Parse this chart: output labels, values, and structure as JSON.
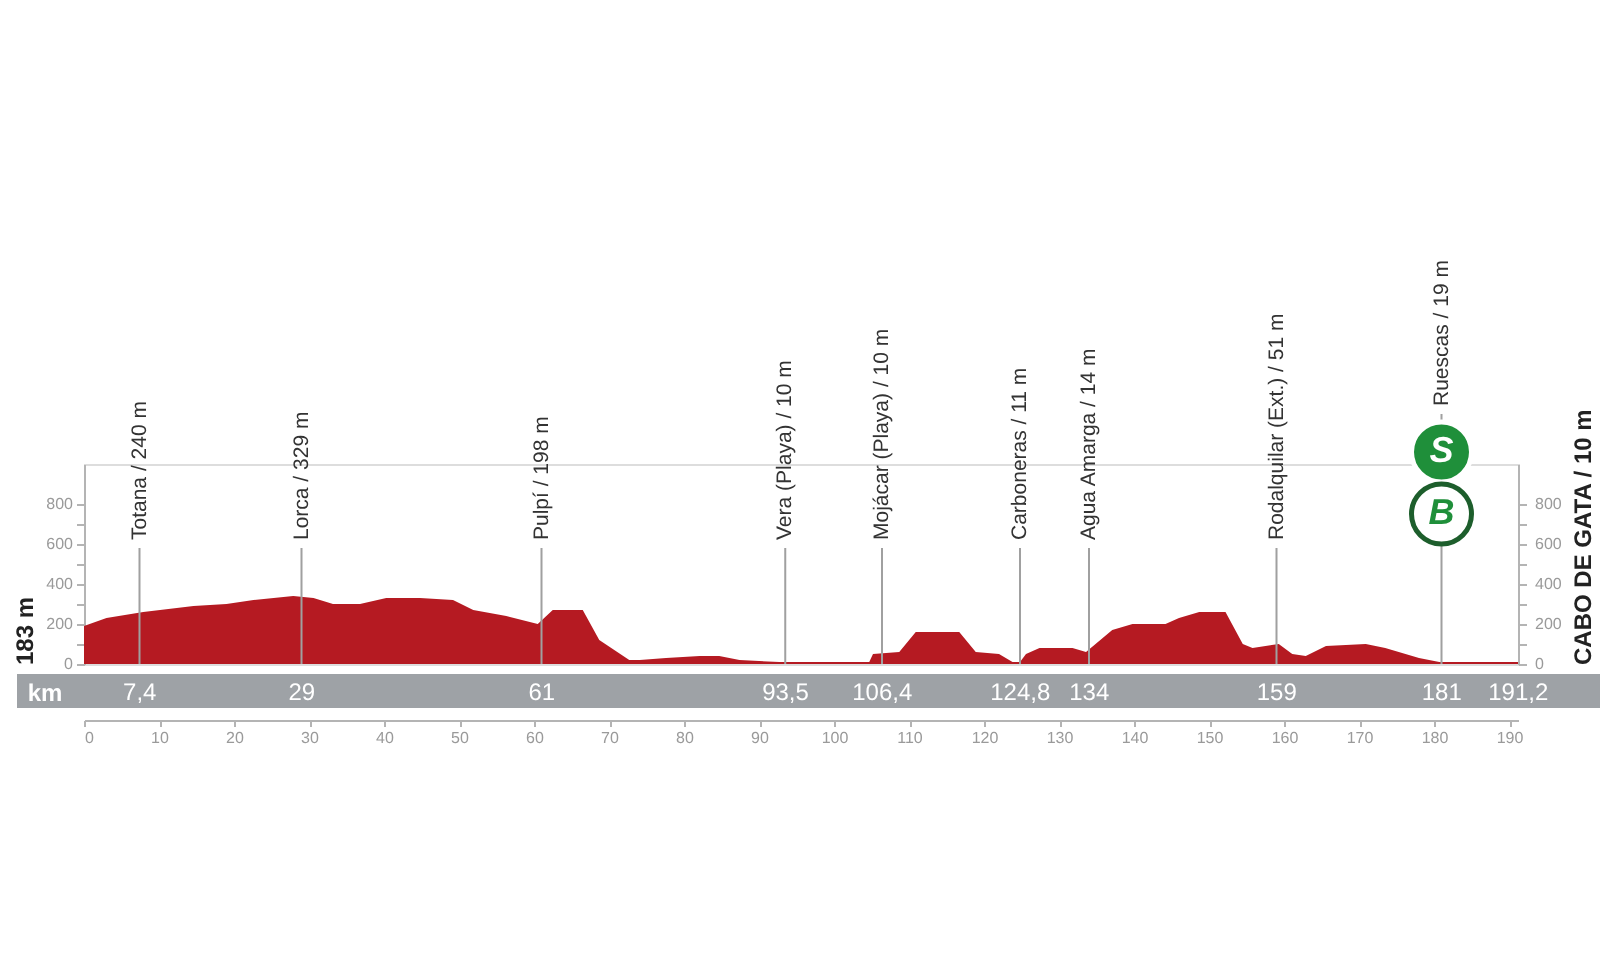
{
  "chart_data": {
    "type": "area",
    "ylabel": "183 m",
    "y2label": "CABO DE GATA / 10 m",
    "x2label": "km",
    "x": [
      0,
      3,
      7.9,
      14.6,
      19,
      22.6,
      27.9,
      30.6,
      33.2,
      36.8,
      40.3,
      44.8,
      49.2,
      51.9,
      56.3,
      60.5,
      62.5,
      66.5,
      68.7,
      72.7,
      74.1,
      77.6,
      82.1,
      84.7,
      87.4,
      92.7,
      104.7,
      105.2,
      108.7,
      110.9,
      116.7,
      118.9,
      122,
      123.8,
      124.8,
      125.6,
      127.4,
      131.8,
      133.6,
      137.1,
      139.8,
      144.2,
      146,
      148.7,
      152.2,
      154.5,
      155.8,
      159.3,
      161.1,
      162.9,
      165.6,
      170.9,
      173.5,
      178,
      180.7,
      191.2
    ],
    "series": [
      {
        "color": "#b51a22",
        "values": [
          190,
          230,
          260,
          290,
          300,
          320,
          340,
          330,
          300,
          300,
          330,
          330,
          320,
          270,
          240,
          200,
          270,
          270,
          120,
          20,
          20,
          30,
          40,
          40,
          20,
          10,
          10,
          50,
          60,
          160,
          160,
          60,
          50,
          10,
          10,
          50,
          80,
          80,
          60,
          170,
          200,
          200,
          230,
          260,
          260,
          100,
          80,
          100,
          50,
          40,
          90,
          100,
          80,
          30,
          10,
          10
        ]
      }
    ],
    "xlim": [
      0,
      191.2
    ],
    "xticks": [
      0,
      10,
      20,
      30,
      40,
      50,
      60,
      70,
      80,
      90,
      100,
      110,
      120,
      130,
      140,
      150,
      160,
      170,
      180,
      190
    ],
    "x2lim": [
      -9.1,
      202.1
    ],
    "x2ticks": [
      {
        "value": 7.4,
        "label": "7,4"
      },
      29,
      61,
      {
        "value": 93.5,
        "label": "93,5"
      },
      {
        "value": 106.4,
        "label": "106,4"
      },
      {
        "value": 124.8,
        "label": "124,8"
      },
      134,
      159,
      181,
      {
        "value": 191.2,
        "label": "191,2"
      }
    ],
    "ylim": [
      0,
      1000
    ],
    "yticks": [
      0,
      {
        "value": 100,
        "label": null
      },
      200,
      {
        "value": 300,
        "label": null
      },
      400,
      {
        "value": 500,
        "label": null
      },
      600,
      {
        "value": 700,
        "label": null
      },
      800
    ],
    "y2lim": [
      0,
      1000
    ],
    "y2ticks": [
      0,
      {
        "value": 100,
        "label": null
      },
      200,
      {
        "value": 300,
        "label": null
      },
      400,
      {
        "value": 500,
        "label": null
      },
      600,
      {
        "value": 700,
        "label": null
      },
      800
    ],
    "ref_lines": [
      {
        "axis": "x",
        "value": 7.4,
        "label": "Totana / 240 m"
      },
      {
        "axis": "x",
        "value": 29,
        "label": "Lorca / 329 m"
      },
      {
        "axis": "x",
        "value": 61,
        "label": "Pulpí / 198 m"
      },
      {
        "axis": "x",
        "value": 93.5,
        "label": "Vera (Playa) / 10 m"
      },
      {
        "axis": "x",
        "value": 106.4,
        "label": "Mojácar (Playa) / 10 m"
      },
      {
        "axis": "x",
        "value": 124.8,
        "label": "Carboneras / 11 m"
      },
      {
        "axis": "x",
        "value": 134,
        "label": "Agua Amarga / 14 m"
      },
      {
        "axis": "x",
        "value": 159,
        "label": "Rodalquilar (Ext.) / 51 m"
      },
      {
        "axis": "x",
        "value": 181,
        "label": "Ruescas / 19 m"
      }
    ],
    "annotations": [
      {
        "text": "S",
        "x": 181
      },
      {
        "text": "B",
        "x": 181
      }
    ]
  }
}
